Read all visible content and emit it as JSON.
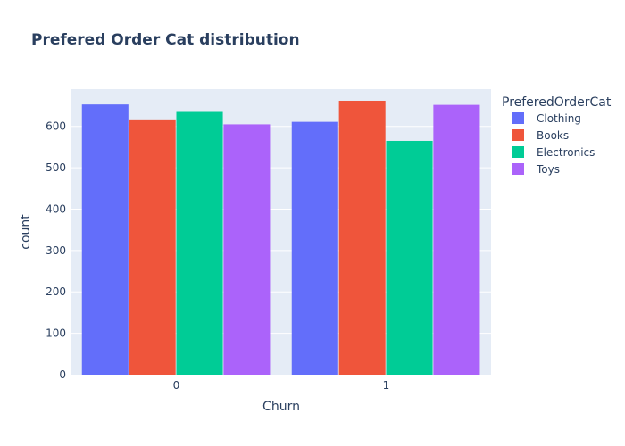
{
  "chart_data": {
    "type": "bar",
    "title": "Prefered Order Cat distribution",
    "xlabel": "Churn",
    "ylabel": "count",
    "categories": [
      "0",
      "1"
    ],
    "yticks": [
      0,
      100,
      200,
      300,
      400,
      500,
      600
    ],
    "ylim": [
      0,
      690
    ],
    "grid": true,
    "legend_title": "PreferedOrderCat",
    "legend_position": "right",
    "series": [
      {
        "name": "Clothing",
        "color": "#636efa",
        "values": [
          653,
          611
        ]
      },
      {
        "name": "Books",
        "color": "#ef553b",
        "values": [
          617,
          662
        ]
      },
      {
        "name": "Electronics",
        "color": "#00cc96",
        "values": [
          635,
          565
        ]
      },
      {
        "name": "Toys",
        "color": "#ab63fa",
        "values": [
          605,
          652
        ]
      }
    ]
  },
  "colors": {
    "plot_background": "#e5ecf6",
    "grid": "#ffffff",
    "text": "#2a3f5f"
  }
}
